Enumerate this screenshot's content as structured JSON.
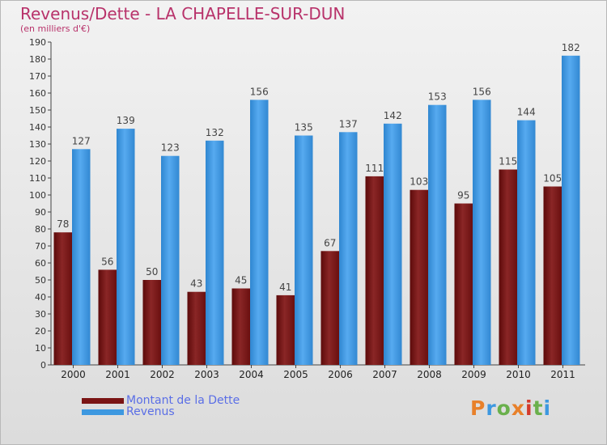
{
  "title": "Revenus/Dette - LA CHAPELLE-SUR-DUN",
  "subtitle": "(en milliers d'€)",
  "colors": {
    "dette": "#7a1414",
    "revenus": "#3d98e0",
    "title": "#b8326a",
    "legend_text": "#5a6ee6"
  },
  "legend": [
    {
      "label": "Montant de la Dette",
      "color": "#7a1414"
    },
    {
      "label": "Revenus",
      "color": "#3d98e0"
    }
  ],
  "logo": {
    "text": "Proxiti",
    "icon": "proxiti-logo"
  },
  "chart_data": {
    "type": "bar",
    "categories": [
      "2000",
      "2001",
      "2002",
      "2003",
      "2004",
      "2005",
      "2006",
      "2007",
      "2008",
      "2009",
      "2010",
      "2011"
    ],
    "series": [
      {
        "name": "Montant de la Dette",
        "values": [
          78,
          56,
          50,
          43,
          45,
          41,
          67,
          111,
          103,
          95,
          115,
          105
        ]
      },
      {
        "name": "Revenus",
        "values": [
          127,
          139,
          123,
          132,
          156,
          135,
          137,
          142,
          153,
          156,
          144,
          182
        ]
      }
    ],
    "ylim": [
      0,
      190
    ],
    "ytick_step": 10,
    "grid": false,
    "data_labels": true
  }
}
